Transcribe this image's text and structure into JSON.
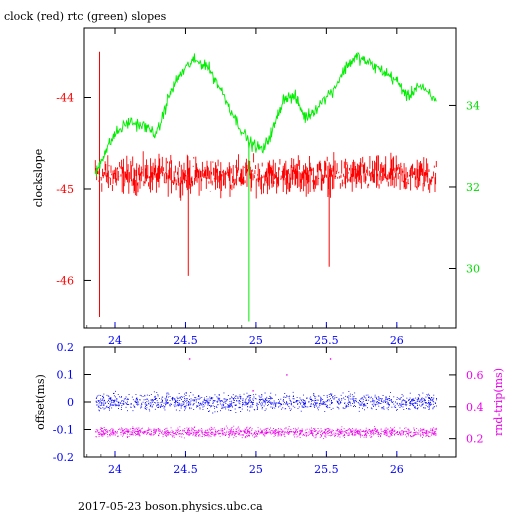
{
  "title": "clock (red) rtc (green) slopes",
  "footer": "2017-05-23  boson.physics.ubc.ca",
  "chart_data": [
    {
      "type": "line",
      "name": "top",
      "xlim": [
        23.78,
        26.42
      ],
      "x_ticks": [
        24,
        24.5,
        25,
        25.5,
        26
      ],
      "x_tick_labels": [
        "24",
        "24.5",
        "25",
        "25.5",
        "26"
      ],
      "left_axis": {
        "label": "clockslope",
        "color": "#ff0000",
        "lim": [
          -46.52,
          -43.24
        ],
        "ticks": [
          -46,
          -45,
          -44
        ],
        "tick_labels": [
          "-46",
          "-45",
          "-44"
        ]
      },
      "right_axis": {
        "label": "",
        "color": "#00dd00",
        "lim": [
          28.54,
          35.9
        ],
        "ticks": [
          30,
          32,
          34
        ],
        "tick_labels": [
          "30",
          "32",
          "34"
        ]
      },
      "series": [
        {
          "name": "clock",
          "axis": "left",
          "color": "#ff0000",
          "baseline": -44.85,
          "noise": 0.17,
          "x_start": 23.86,
          "x_end": 26.28,
          "spikes": [
            [
              23.89,
              -43.5
            ],
            [
              23.89,
              -46.4
            ],
            [
              24.52,
              -45.95
            ],
            [
              25.52,
              -45.85
            ]
          ]
        },
        {
          "name": "rtc",
          "axis": "right",
          "color": "#00ee00",
          "x": [
            23.86,
            23.92,
            24.0,
            24.1,
            24.2,
            24.3,
            24.38,
            24.45,
            24.55,
            24.65,
            24.75,
            24.85,
            24.95,
            25.05,
            25.12,
            25.2,
            25.28,
            25.35,
            25.42,
            25.55,
            25.65,
            25.72,
            25.82,
            25.92,
            26.0,
            26.08,
            26.15,
            26.28
          ],
          "y": [
            32.3,
            32.8,
            33.3,
            33.6,
            33.5,
            33.3,
            34.2,
            34.7,
            35.1,
            35.0,
            34.4,
            33.7,
            33.1,
            32.9,
            33.4,
            34.2,
            34.2,
            33.7,
            33.9,
            34.4,
            35.0,
            35.2,
            35.0,
            34.8,
            34.6,
            34.2,
            34.5,
            34.1
          ],
          "spikes": [
            [
              24.95,
              28.7
            ]
          ]
        }
      ]
    },
    {
      "type": "scatter",
      "name": "bottom",
      "xlim": [
        23.78,
        26.42
      ],
      "x_ticks": [
        24,
        24.5,
        25,
        25.5,
        26
      ],
      "x_tick_labels": [
        "24",
        "24.5",
        "25",
        "25.5",
        "26"
      ],
      "left_axis": {
        "label": "offset(ms)",
        "color": "#0000ff",
        "lim": [
          -0.2,
          0.2
        ],
        "ticks": [
          -0.2,
          -0.1,
          0,
          0.1,
          0.2
        ],
        "tick_labels": [
          "-0.2",
          "-0.1",
          "0",
          "0.1",
          "0.2"
        ]
      },
      "right_axis": {
        "label": "rnd-trip(ms)",
        "color": "#ee00ee",
        "lim": [
          0.085,
          0.775
        ],
        "ticks": [
          0.2,
          0.4,
          0.6
        ],
        "tick_labels": [
          "0.2",
          "0.4",
          "0.6"
        ]
      },
      "series": [
        {
          "name": "offset",
          "axis": "left",
          "color": "#0000ff",
          "center": 0.0,
          "spread": 0.025,
          "x_start": 23.86,
          "x_end": 26.28
        },
        {
          "name": "rnd-trip",
          "axis": "right",
          "color": "#ee00ee",
          "center": 0.24,
          "spread": 0.025,
          "x_start": 23.86,
          "x_end": 26.28,
          "spikes": [
            [
              24.53,
              0.7
            ],
            [
              25.53,
              0.7
            ],
            [
              25.22,
              0.6
            ],
            [
              24.98,
              0.5
            ]
          ]
        }
      ]
    }
  ]
}
